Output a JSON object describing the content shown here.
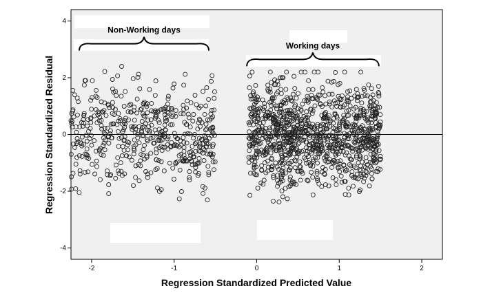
{
  "chart_data": {
    "type": "scatter",
    "title": "",
    "xlabel": "Regression Standardized Predicted Value",
    "ylabel": "Regression Standardized Residual",
    "xlim": [
      -2.25,
      2.25
    ],
    "ylim": [
      -4.4,
      4.4
    ],
    "x_ticks": [
      -2,
      -1,
      0,
      1,
      2
    ],
    "y_ticks": [
      -4,
      -2,
      0,
      2,
      4
    ],
    "reference_line_y": 0,
    "grid": false,
    "marker": "hollow-circle",
    "plot_background": "#f0f0f0",
    "annotations": [
      {
        "text": "Non-Working days",
        "x_range": [
          -2.15,
          -0.58
        ],
        "y": 3.1,
        "shape": "curly-brace"
      },
      {
        "text": "Working days",
        "x_range": [
          -0.12,
          1.48
        ],
        "y": 2.55,
        "shape": "curly-brace"
      }
    ],
    "clusters": [
      {
        "x_range": [
          -2.25,
          -0.5
        ],
        "y_range": [
          -2.7,
          2.75
        ],
        "count": 520
      },
      {
        "x_range": [
          -0.1,
          1.5
        ],
        "y_range": [
          -2.5,
          2.2
        ],
        "count": 1100
      }
    ]
  }
}
